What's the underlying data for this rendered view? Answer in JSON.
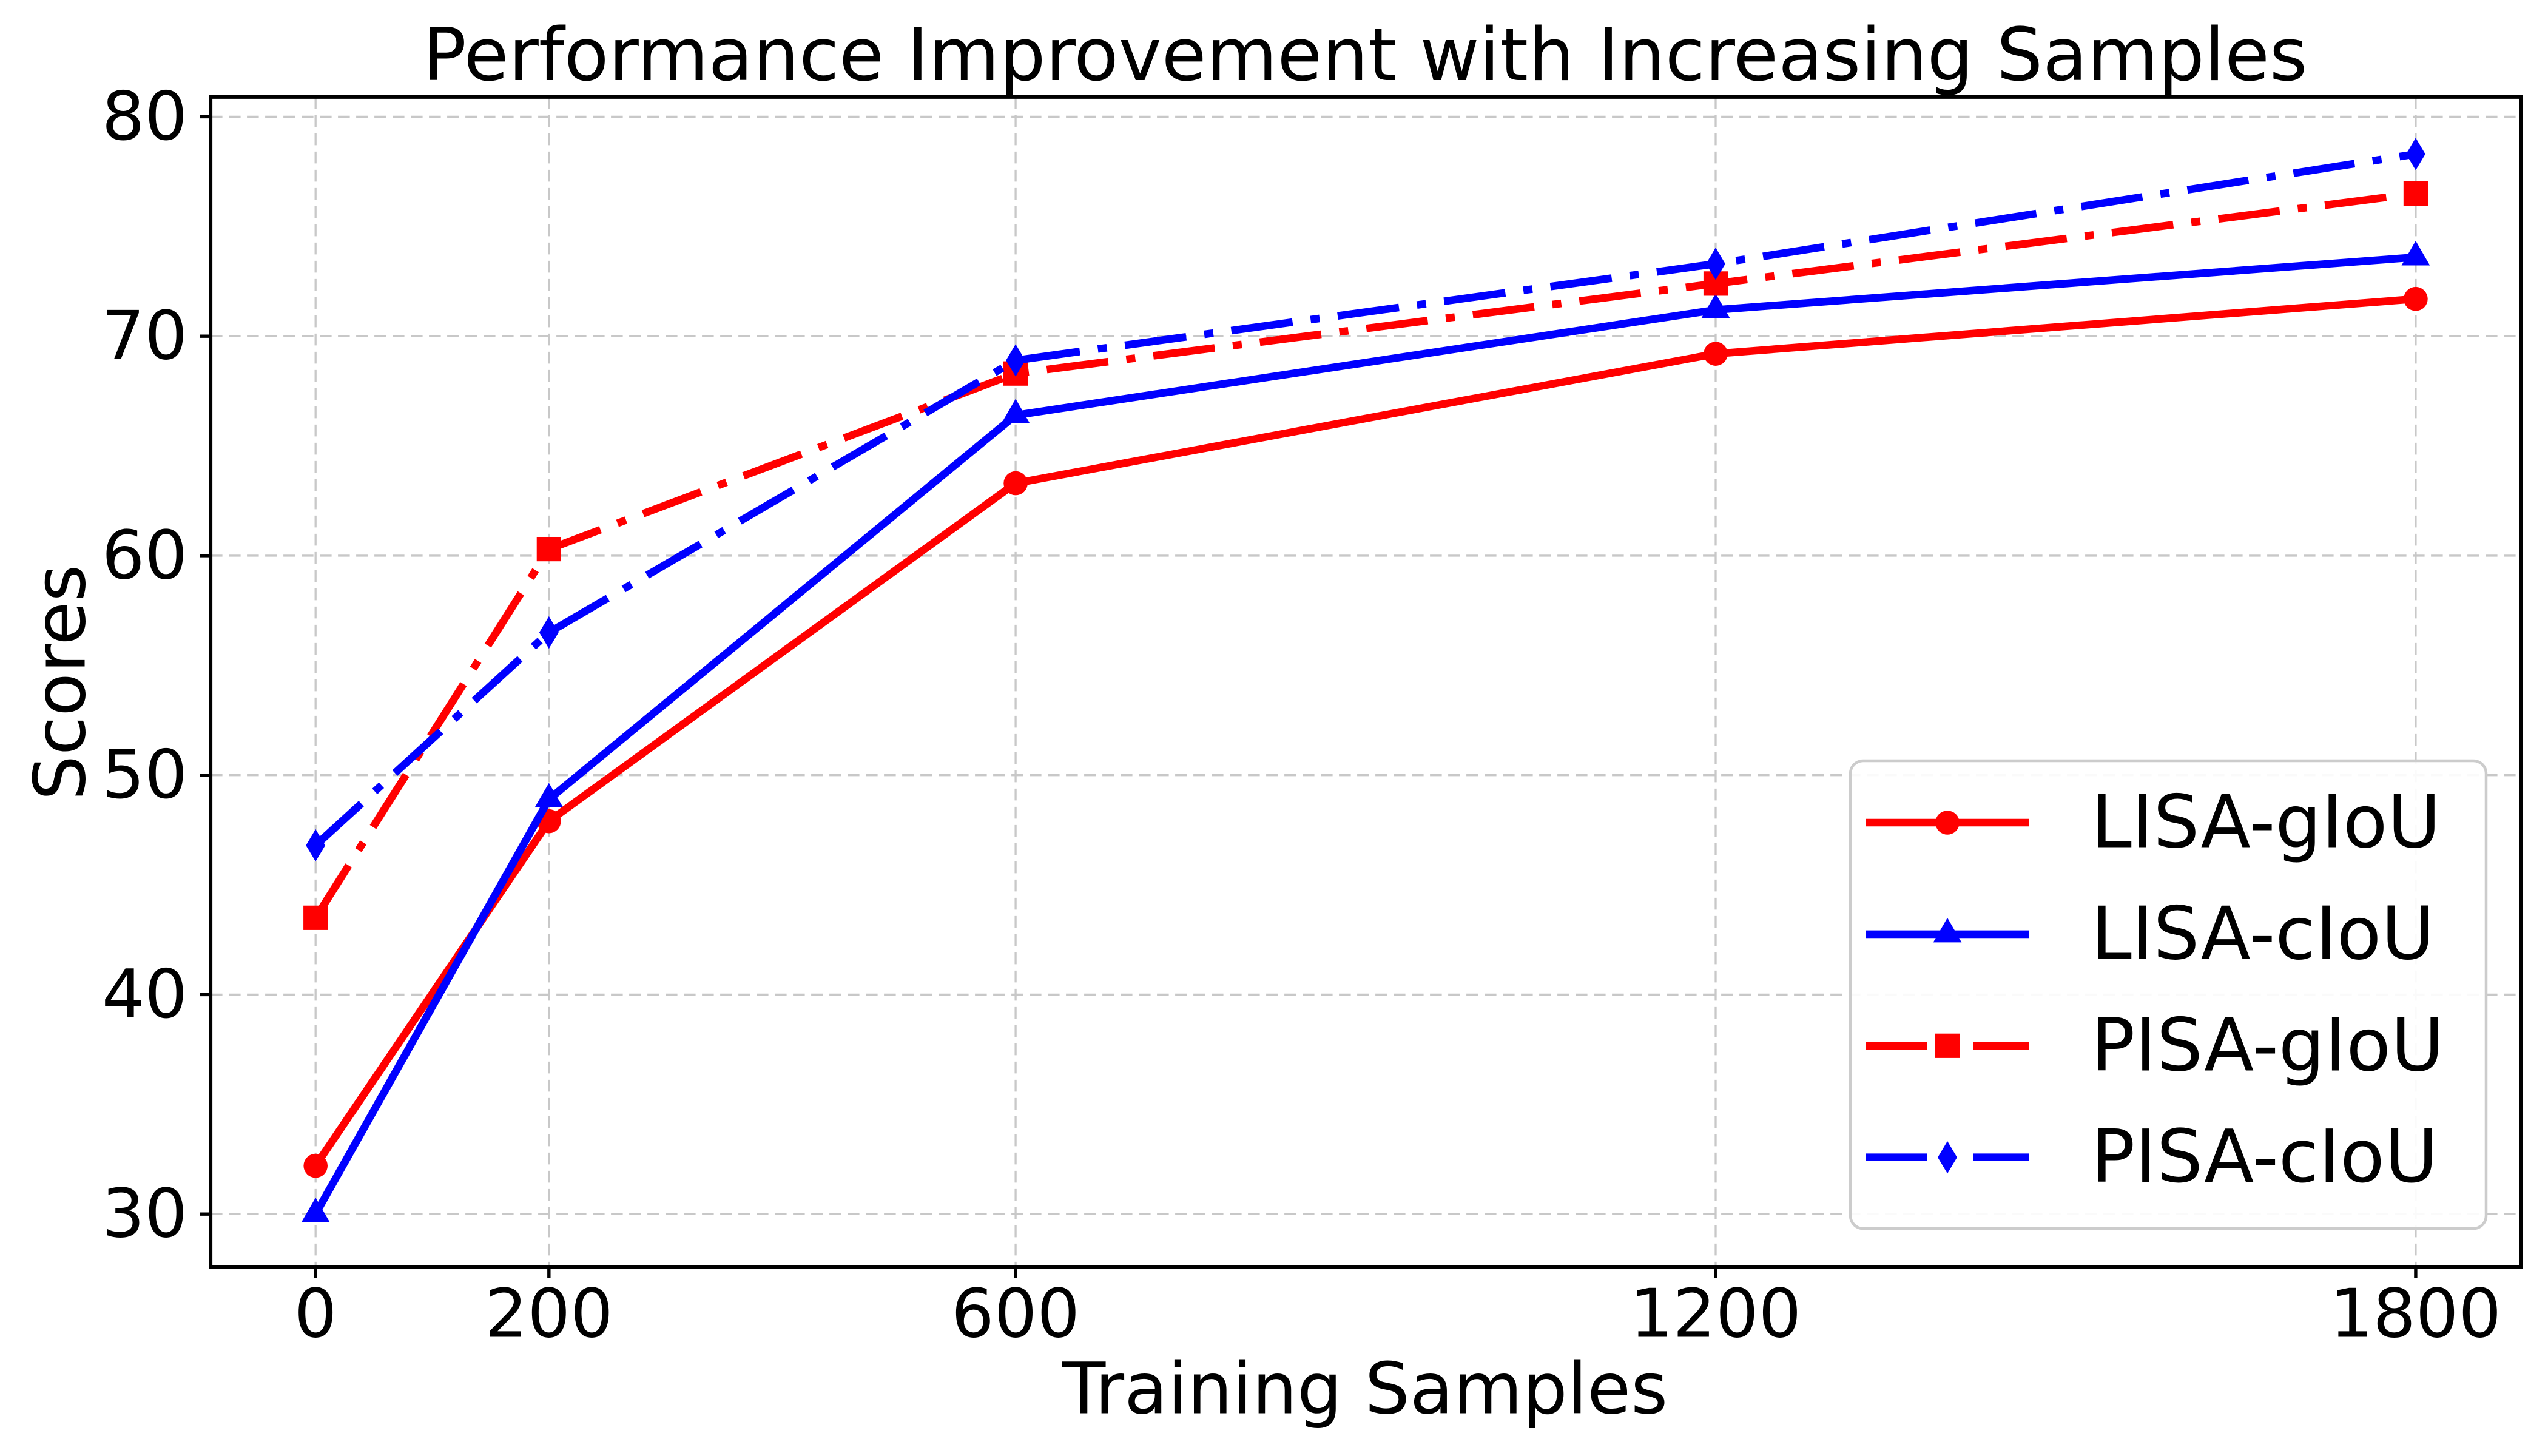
{
  "figure": {
    "background": "#ffffff",
    "text_color": "#000000",
    "grid_color": "#c8c8c8",
    "spine_color": "#000000",
    "legend_border_color": "#cccccc",
    "legend_background": "#ffffff"
  },
  "chart_data": {
    "type": "line",
    "title": "Performance Improvement with Increasing Samples",
    "xlabel": "Training Samples",
    "ylabel": "Scores",
    "x": [
      0,
      200,
      600,
      1200,
      1800
    ],
    "xticks": [
      "0",
      "200",
      "600",
      "1200",
      "1800"
    ],
    "xtick_values": [
      0,
      200,
      600,
      1200,
      1800
    ],
    "yticks": [
      "30",
      "40",
      "50",
      "60",
      "70",
      "80"
    ],
    "ytick_values": [
      30,
      40,
      50,
      60,
      70,
      80
    ],
    "xlim": [
      -90,
      1890
    ],
    "ylim": [
      27.6,
      80.9
    ],
    "grid": true,
    "legend_position": "lower right",
    "series": [
      {
        "name": "LISA-gIoU",
        "color": "#ff0000",
        "linestyle": "solid",
        "marker": "circle",
        "values": [
          32.2,
          47.9,
          63.3,
          69.2,
          71.7
        ]
      },
      {
        "name": "LISA-cIoU",
        "color": "#0000ff",
        "linestyle": "solid",
        "marker": "triangle",
        "values": [
          30.0,
          48.9,
          66.4,
          71.2,
          73.6
        ]
      },
      {
        "name": "PISA-gIoU",
        "color": "#ff0000",
        "linestyle": "dashdot",
        "marker": "square",
        "values": [
          43.5,
          60.3,
          68.3,
          72.4,
          76.5
        ]
      },
      {
        "name": "PISA-cIoU",
        "color": "#0000ff",
        "linestyle": "dashdot",
        "marker": "diamond",
        "values": [
          46.8,
          56.5,
          68.9,
          73.3,
          78.3
        ]
      }
    ]
  }
}
